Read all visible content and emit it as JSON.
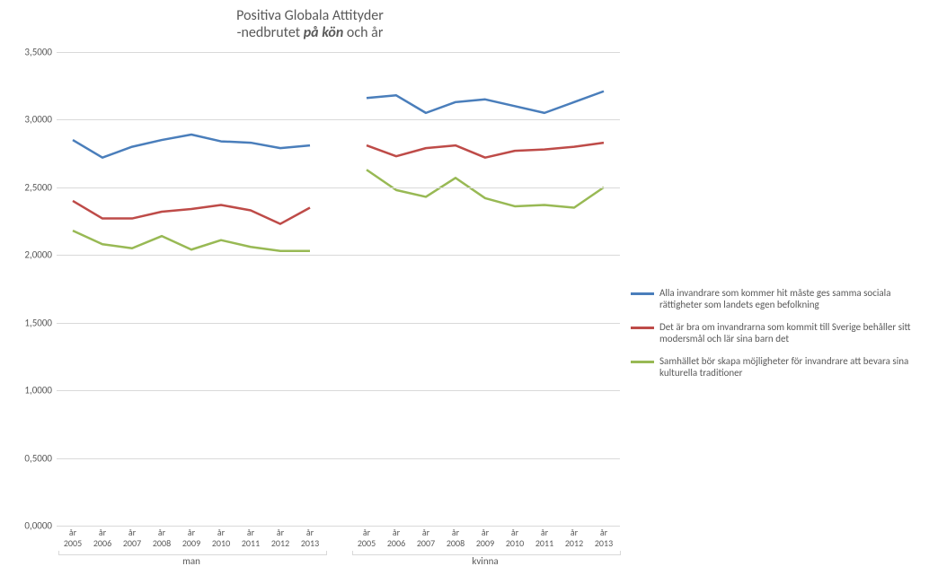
{
  "chart": {
    "title_line1": "Positiva Globala Attityder",
    "title_line2_prefix": "-nedbrutet ",
    "title_line2_em": "på kön",
    "title_line2_suffix": " och år",
    "title_fontsize": 16,
    "label_fontsize": 11,
    "tick_fontsize": 10,
    "background_color": "#ffffff",
    "grid_color": "#d9d9d9",
    "text_color": "#595959",
    "ylim": [
      0.0,
      3.5
    ],
    "ytick_step": 0.5,
    "yticks": [
      "0,0000",
      "0,5000",
      "1,0000",
      "1,5000",
      "2,0000",
      "2,5000",
      "3,0000",
      "3,5000"
    ],
    "groups": [
      {
        "label": "man",
        "xlabel_top": "år",
        "years": [
          "2005",
          "2006",
          "2007",
          "2008",
          "2009",
          "2010",
          "2011",
          "2012",
          "2013"
        ]
      },
      {
        "label": "kvinna",
        "xlabel_top": "år",
        "years": [
          "2005",
          "2006",
          "2007",
          "2008",
          "2009",
          "2010",
          "2011",
          "2012",
          "2013"
        ]
      }
    ],
    "series": [
      {
        "name": "Alla invandrare som kommer hit måste ges samma sociala rättigheter som landets egen befolkning",
        "color": "#4a7ebb",
        "line_width": 2.5,
        "man": [
          2.85,
          2.72,
          2.8,
          2.85,
          2.89,
          2.84,
          2.83,
          2.79,
          2.81
        ],
        "kvinna": [
          3.16,
          3.18,
          3.05,
          3.13,
          3.15,
          3.1,
          3.05,
          3.13,
          3.21
        ]
      },
      {
        "name": "Det är bra om invandrarna som kommit till Sverige behåller sitt modersmål och lär sina barn det",
        "color": "#be4b48",
        "line_width": 2.5,
        "man": [
          2.4,
          2.27,
          2.27,
          2.32,
          2.34,
          2.37,
          2.33,
          2.23,
          2.35
        ],
        "kvinna": [
          2.81,
          2.73,
          2.79,
          2.81,
          2.72,
          2.77,
          2.78,
          2.8,
          2.83
        ]
      },
      {
        "name": "Samhället bör skapa möjligheter för invandrare att bevara sina kulturella traditioner",
        "color": "#98b954",
        "line_width": 2.5,
        "man": [
          2.18,
          2.08,
          2.05,
          2.14,
          2.04,
          2.11,
          2.06,
          2.03,
          2.03
        ],
        "kvinna": [
          2.63,
          2.48,
          2.43,
          2.57,
          2.42,
          2.36,
          2.37,
          2.35,
          2.5
        ]
      }
    ]
  }
}
